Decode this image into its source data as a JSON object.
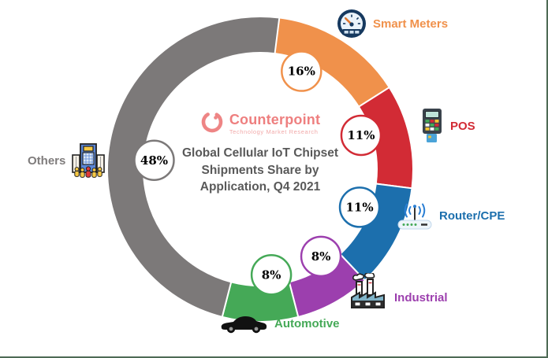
{
  "frame": {
    "border_color": "#4e6a55",
    "background": "#ffffff"
  },
  "logo": {
    "name": "Counterpoint",
    "tagline": "Technology Market Research",
    "brand_color": "#ee7f7f"
  },
  "title": {
    "line1": "Global Cellular IoT Chipset",
    "line2": "Shipments Share by",
    "line3": "Application, Q4 2021",
    "color": "#595959"
  },
  "chart_data": {
    "type": "pie",
    "subtype": "donut",
    "title": "Global Cellular IoT Chipset Shipments Share by Application, Q4 2021",
    "start_angle_deg": 0,
    "direction": "clockwise",
    "legend_position": "around",
    "segments": [
      {
        "label": "Smart Meters",
        "value_pct": 16,
        "data_label": "16%",
        "color": "#F0914B",
        "icon": "gauge-icon"
      },
      {
        "label": "POS",
        "value_pct": 11,
        "data_label": "11%",
        "color": "#D22B35",
        "icon": "pos-terminal-icon"
      },
      {
        "label": "Router/CPE",
        "value_pct": 11,
        "data_label": "11%",
        "color": "#1C6FAD",
        "icon": "router-icon"
      },
      {
        "label": "Industrial",
        "value_pct": 8,
        "data_label": "8%",
        "color": "#9C3FAE",
        "icon": "factory-icon"
      },
      {
        "label": "Automotive",
        "value_pct": 8,
        "data_label": "8%",
        "color": "#45A957",
        "icon": "car-icon"
      },
      {
        "label": "Others",
        "value_pct": 48,
        "data_label": "48%",
        "color": "#7C7979",
        "icon": "building-icon"
      }
    ]
  }
}
